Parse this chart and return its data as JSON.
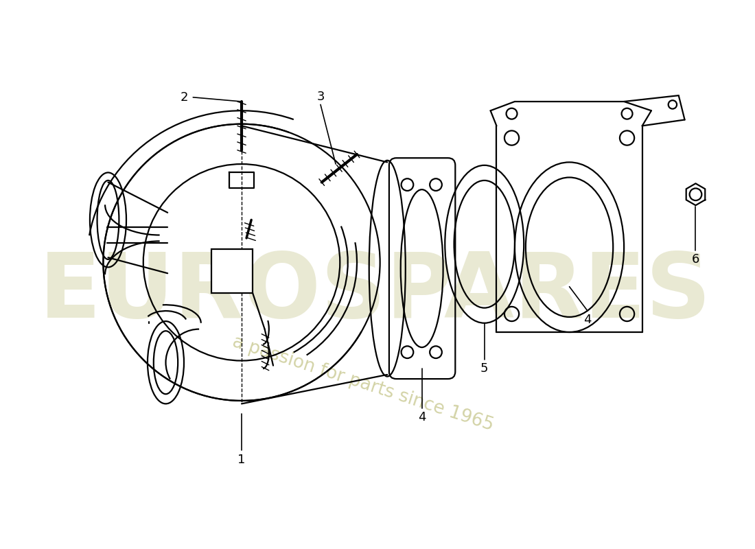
{
  "background_color": "#ffffff",
  "line_color": "#000000",
  "watermark_text1": "EUROSPARES",
  "watermark_text2": "a passion for parts since 1965",
  "watermark_color1": "#d8d8b0",
  "watermark_color2": "#c8c890",
  "figsize": [
    11.0,
    8.0
  ],
  "dpi": 100
}
